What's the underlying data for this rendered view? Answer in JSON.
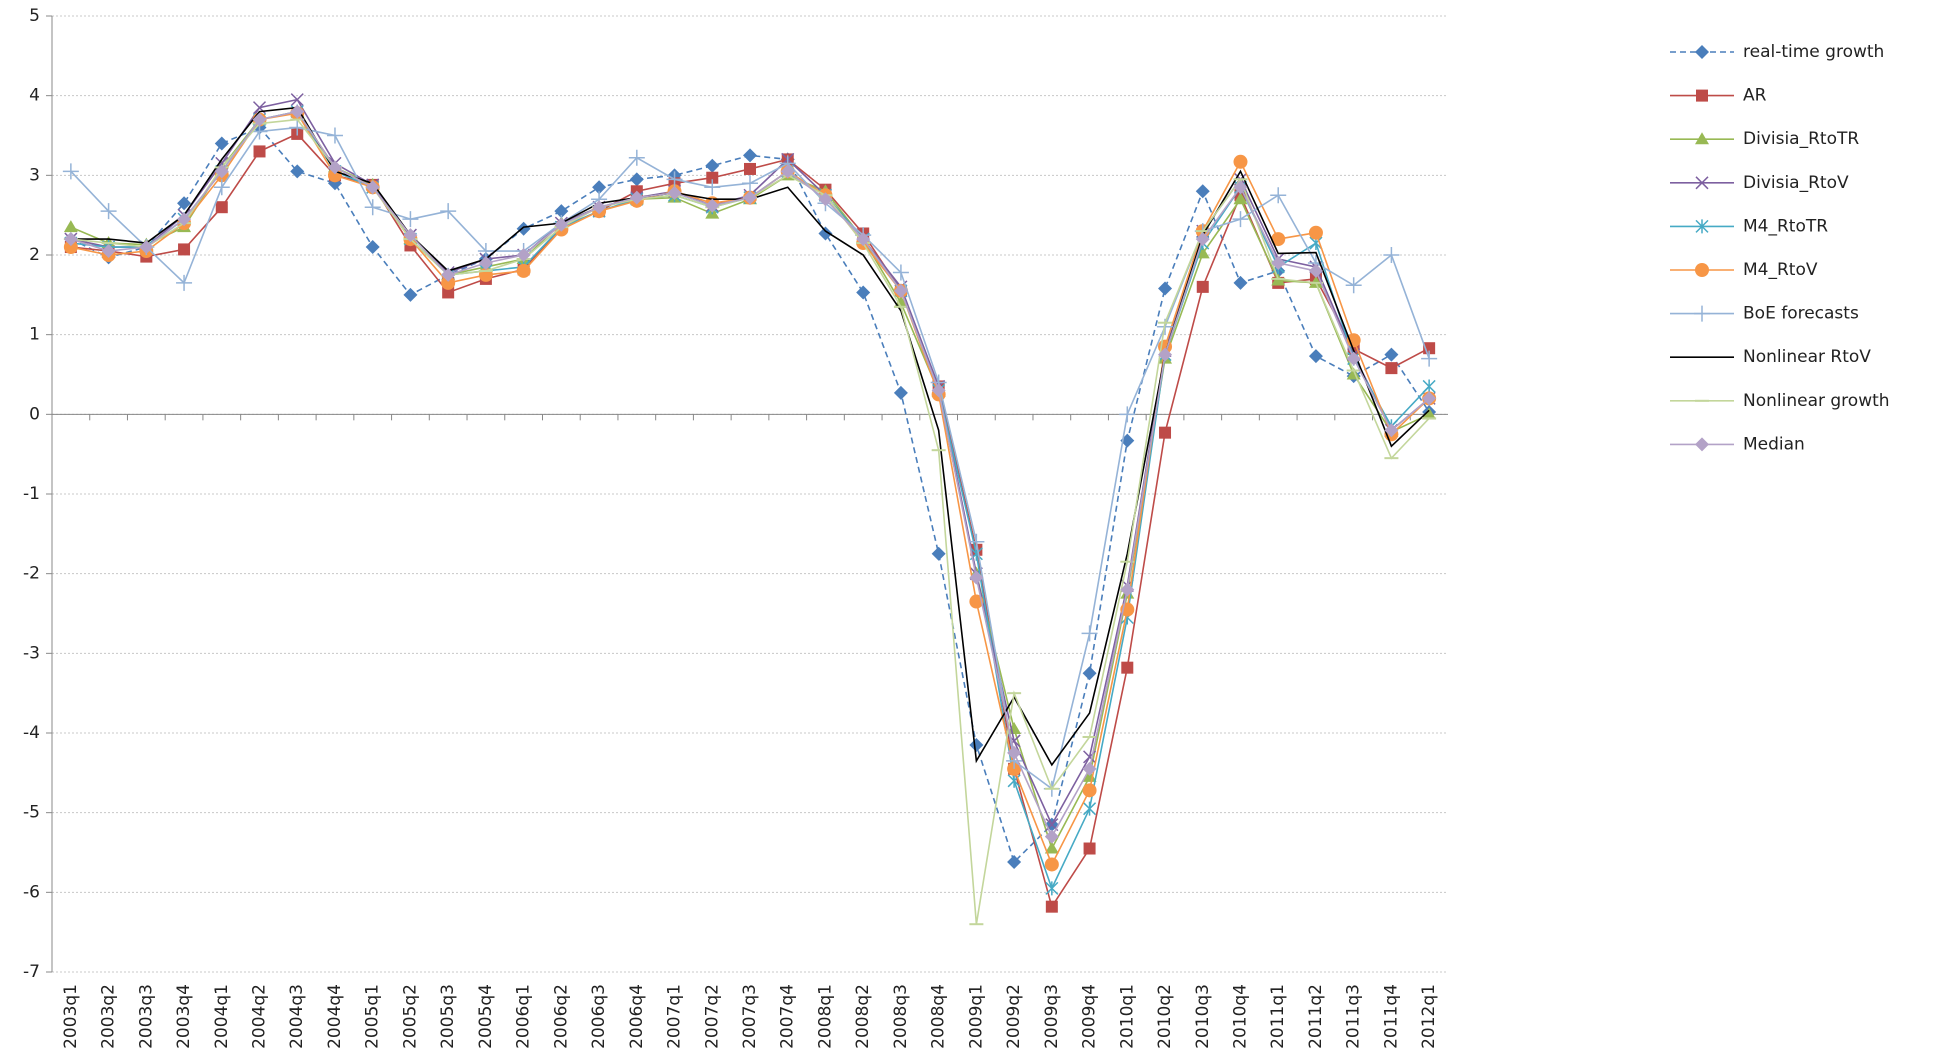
{
  "chart_data": {
    "type": "line",
    "categories": [
      "2003q1",
      "2003q2",
      "2003q3",
      "2003q4",
      "2004q1",
      "2004q2",
      "2004q3",
      "2004q4",
      "2005q1",
      "2005q2",
      "2005q3",
      "2005q4",
      "2006q1",
      "2006q2",
      "2006q3",
      "2006q4",
      "2007q1",
      "2007q2",
      "2007q3",
      "2007q4",
      "2008q1",
      "2008q2",
      "2008q3",
      "2008q4",
      "2009q1",
      "2009q2",
      "2009q3",
      "2009q4",
      "2010q1",
      "2010q2",
      "2010q3",
      "2010q4",
      "2011q1",
      "2011q2",
      "2011q3",
      "2011q4",
      "2012q1"
    ],
    "ylim": [
      -7,
      5
    ],
    "yticks": [
      -7,
      -6,
      -5,
      -4,
      -3,
      -2,
      -1,
      0,
      1,
      2,
      3,
      4,
      5
    ],
    "grid": true,
    "legend": "right",
    "series": [
      {
        "name": "real-time growth",
        "color": "#4a7ebb",
        "marker": "diamond",
        "dashed": true,
        "values": [
          2.2,
          1.97,
          2.1,
          2.65,
          3.4,
          3.6,
          3.05,
          2.9,
          2.1,
          1.5,
          1.75,
          1.95,
          2.33,
          2.55,
          2.85,
          2.95,
          3.0,
          3.12,
          3.25,
          3.2,
          2.27,
          1.53,
          0.27,
          -1.75,
          -4.15,
          -5.62,
          -5.15,
          -3.25,
          -0.33,
          1.58,
          2.8,
          1.65,
          1.8,
          0.73,
          0.48,
          0.75,
          0.03
        ]
      },
      {
        "name": "AR",
        "color": "#be4b48",
        "marker": "square",
        "values": [
          2.1,
          2.05,
          1.98,
          2.07,
          2.6,
          3.3,
          3.52,
          3.0,
          2.88,
          2.12,
          1.53,
          1.7,
          1.82,
          2.35,
          2.55,
          2.8,
          2.9,
          2.97,
          3.08,
          3.2,
          2.82,
          2.27,
          1.55,
          0.35,
          -1.7,
          -4.45,
          -6.18,
          -5.45,
          -3.18,
          -0.23,
          1.6,
          2.75,
          1.65,
          1.7,
          0.82,
          0.58,
          0.83
        ]
      },
      {
        "name": "Divisia_RtoTR",
        "color": "#98b954",
        "marker": "triangle",
        "values": [
          2.35,
          2.15,
          2.13,
          2.35,
          3.1,
          3.7,
          3.8,
          3.1,
          2.88,
          2.2,
          1.75,
          1.85,
          1.95,
          2.4,
          2.6,
          2.7,
          2.72,
          2.52,
          2.7,
          3.0,
          2.8,
          2.2,
          1.4,
          0.28,
          -2.0,
          -3.95,
          -5.45,
          -4.55,
          -2.25,
          0.7,
          2.02,
          2.7,
          1.68,
          1.65,
          0.5,
          -0.22,
          0.0
        ]
      },
      {
        "name": "Divisia_RtoV",
        "color": "#7d60a0",
        "marker": "x",
        "values": [
          2.2,
          2.1,
          2.1,
          2.5,
          3.15,
          3.85,
          3.95,
          3.15,
          2.88,
          2.25,
          1.78,
          1.95,
          2.0,
          2.4,
          2.6,
          2.72,
          2.8,
          2.62,
          2.75,
          3.2,
          2.75,
          2.2,
          1.6,
          0.35,
          -2.0,
          -4.1,
          -5.15,
          -4.3,
          -2.15,
          0.8,
          2.3,
          2.95,
          1.95,
          1.85,
          0.75,
          -0.2,
          0.2
        ]
      },
      {
        "name": "M4_RtoTR",
        "color": "#46aac5",
        "marker": "asterisk",
        "values": [
          2.15,
          2.1,
          2.1,
          2.45,
          3.05,
          3.7,
          3.8,
          3.05,
          2.85,
          2.2,
          1.75,
          1.8,
          1.85,
          2.35,
          2.55,
          2.7,
          2.75,
          2.6,
          2.72,
          3.05,
          2.75,
          2.2,
          1.55,
          0.3,
          -1.75,
          -4.6,
          -5.95,
          -4.95,
          -2.55,
          0.75,
          2.15,
          2.85,
          1.85,
          2.15,
          0.7,
          -0.15,
          0.35
        ]
      },
      {
        "name": "M4_RtoV",
        "color": "#f79646",
        "marker": "circle",
        "values": [
          2.1,
          2.0,
          2.05,
          2.4,
          3.0,
          3.7,
          3.78,
          3.0,
          2.85,
          2.2,
          1.65,
          1.75,
          1.8,
          2.32,
          2.55,
          2.68,
          2.8,
          2.65,
          2.72,
          3.05,
          2.75,
          2.15,
          1.55,
          0.25,
          -2.35,
          -4.45,
          -5.65,
          -4.72,
          -2.45,
          0.85,
          2.3,
          3.17,
          2.2,
          2.28,
          0.93,
          -0.25,
          0.2
        ]
      },
      {
        "name": "BoE forecasts",
        "color": "#95b3d7",
        "marker": "plus",
        "values": [
          3.05,
          2.55,
          2.1,
          1.65,
          2.85,
          3.55,
          3.6,
          3.5,
          2.6,
          2.45,
          2.55,
          2.05,
          2.05,
          2.4,
          2.7,
          3.22,
          2.95,
          2.85,
          2.9,
          3.15,
          2.65,
          2.25,
          1.78,
          0.4,
          -1.6,
          -4.35,
          -4.7,
          -2.75,
          0.0,
          1.1,
          2.3,
          2.45,
          2.75,
          1.9,
          1.62,
          2.0,
          0.7
        ]
      },
      {
        "name": "Nonlinear RtoV",
        "color": "#000000",
        "marker": "none",
        "values": [
          2.2,
          2.2,
          2.15,
          2.5,
          3.2,
          3.8,
          3.85,
          3.05,
          2.9,
          2.25,
          1.8,
          1.95,
          2.35,
          2.4,
          2.65,
          2.72,
          2.78,
          2.7,
          2.7,
          2.85,
          2.3,
          2.0,
          1.3,
          -0.2,
          -4.35,
          -3.55,
          -4.4,
          -3.75,
          -1.75,
          0.75,
          2.25,
          3.05,
          2.02,
          2.03,
          0.8,
          -0.4,
          0.05
        ]
      },
      {
        "name": "Nonlinear growth",
        "color": "#c3d69b",
        "marker": "dash",
        "values": [
          2.2,
          2.15,
          2.1,
          2.4,
          3.1,
          3.65,
          3.7,
          3.1,
          2.85,
          2.2,
          1.75,
          1.8,
          1.95,
          2.35,
          2.6,
          2.7,
          2.75,
          2.6,
          2.72,
          3.0,
          2.75,
          2.15,
          1.35,
          -0.45,
          -6.4,
          -3.5,
          -4.7,
          -4.05,
          -1.85,
          1.15,
          2.3,
          2.95,
          1.7,
          1.65,
          0.55,
          -0.55,
          -0.05
        ]
      },
      {
        "name": "Median",
        "color": "#b3a2c7",
        "marker": "diamond",
        "values": [
          2.2,
          2.05,
          2.1,
          2.45,
          3.05,
          3.7,
          3.8,
          3.1,
          2.85,
          2.25,
          1.75,
          1.9,
          2.0,
          2.38,
          2.6,
          2.72,
          2.78,
          2.62,
          2.72,
          3.05,
          2.7,
          2.2,
          1.55,
          0.3,
          -2.05,
          -4.25,
          -5.3,
          -4.45,
          -2.2,
          0.75,
          2.2,
          2.85,
          1.9,
          1.8,
          0.7,
          -0.2,
          0.2
        ]
      }
    ]
  }
}
